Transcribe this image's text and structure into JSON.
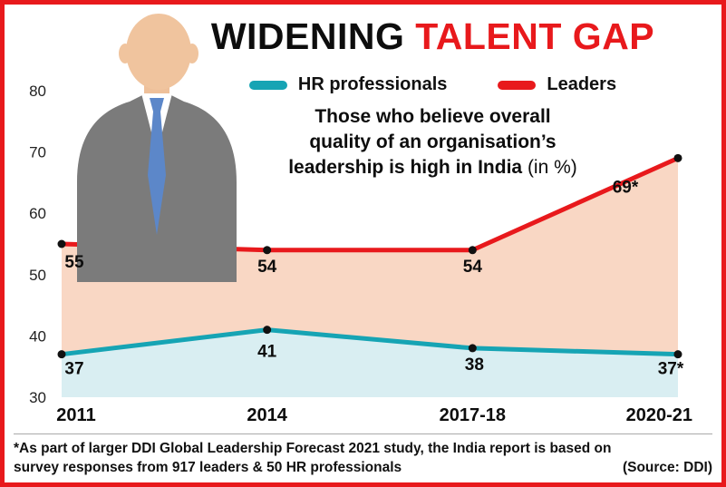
{
  "title": {
    "part1": "WIDENING ",
    "part2": "TALENT GAP"
  },
  "legend": [
    {
      "label": "HR professionals",
      "color": "#16a4b4"
    },
    {
      "label": "Leaders",
      "color": "#e8191c"
    }
  ],
  "description": {
    "line1": "Those who believe overall",
    "line2": "quality of an organisation’s",
    "line3_bold": "leadership is high in India ",
    "line3_normal": "(in %)"
  },
  "footnote": {
    "line1": "*As part of larger DDI Global Leadership Forecast 2021 study, the India report is based on",
    "line2": "survey responses from 917 leaders & 50 HR professionals",
    "source": "(Source: DDI)"
  },
  "person_icon": "businessman-illustration",
  "colors": {
    "accent_red": "#e8191c",
    "teal": "#16a4b4",
    "peach_area": "#f9d7c4",
    "blue_area": "#d9eef2",
    "border": "#e8191c",
    "text": "#0d0d0d"
  },
  "chart_data": {
    "type": "area",
    "title": "Those who believe overall quality of an organisation’s leadership is high in India (in %)",
    "categories": [
      "2011",
      "2014",
      "2017-18",
      "2020-21"
    ],
    "series": [
      {
        "name": "Leaders",
        "color": "#e8191c",
        "fill": "#f9d7c4",
        "values": [
          55,
          54,
          54,
          69
        ],
        "labels": [
          "55",
          "54",
          "54",
          "69*"
        ],
        "label_offsets": [
          [
            14,
            26
          ],
          [
            0,
            24
          ],
          [
            0,
            24
          ],
          [
            -58,
            38
          ]
        ]
      },
      {
        "name": "HR professionals",
        "color": "#16a4b4",
        "fill": "#d9eef2",
        "values": [
          37,
          41,
          38,
          37
        ],
        "labels": [
          "37",
          "41",
          "38",
          "37*"
        ],
        "label_offsets": [
          [
            14,
            22
          ],
          [
            0,
            30
          ],
          [
            2,
            24
          ],
          [
            -8,
            22
          ]
        ]
      }
    ],
    "ylim": [
      30,
      80
    ],
    "yticks": [
      80,
      70,
      60,
      50,
      40,
      30
    ],
    "grid": false,
    "legend_position": "top"
  }
}
